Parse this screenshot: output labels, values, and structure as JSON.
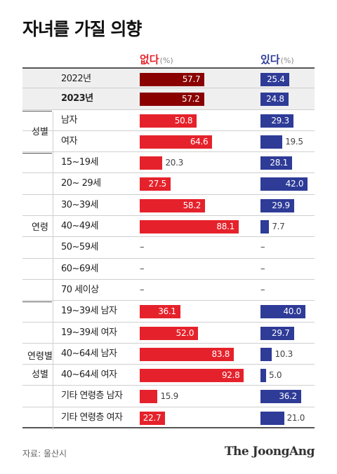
{
  "title": "자녀를 가질 의향",
  "headers": {
    "no": "없다",
    "yes": "있다",
    "unit": "(%)"
  },
  "groups": [
    "성별",
    "연령",
    "연령별",
    "성별"
  ],
  "chart_data": {
    "type": "bar",
    "title": "자녀를 가질 의향",
    "unit": "%",
    "max": 100,
    "colors": {
      "no": "#e5222b",
      "no_total": "#8a0000",
      "yes": "#2e3b97"
    },
    "rows": [
      {
        "label": "2022년",
        "no": 57.7,
        "yes": 25.4,
        "no_text": "57.7",
        "yes_text": "25.4",
        "shaded": true,
        "total": true
      },
      {
        "label": "2023년",
        "no": 57.2,
        "yes": 24.8,
        "no_text": "57.2",
        "yes_text": "24.8",
        "shaded": true,
        "total": true,
        "bold": true
      },
      {
        "label": "남자",
        "no": 50.8,
        "yes": 29.3,
        "no_text": "50.8",
        "yes_text": "29.3"
      },
      {
        "label": "여자",
        "no": 64.6,
        "yes": 19.5,
        "no_text": "64.6",
        "yes_text": "19.5"
      },
      {
        "label": "15~19세",
        "no": 20.3,
        "yes": 28.1,
        "no_text": "20.3",
        "yes_text": "28.1"
      },
      {
        "label": "20~ 29세",
        "no": 27.5,
        "yes": 42.0,
        "no_text": "27.5",
        "yes_text": "42.0"
      },
      {
        "label": "30~39세",
        "no": 58.2,
        "yes": 29.9,
        "no_text": "58.2",
        "yes_text": "29.9"
      },
      {
        "label": "40~49세",
        "no": 88.1,
        "yes": 7.7,
        "no_text": "88.1",
        "yes_text": "7.7"
      },
      {
        "label": "50~59세",
        "no": null,
        "yes": null,
        "no_text": "–",
        "yes_text": "–"
      },
      {
        "label": "60~69세",
        "no": null,
        "yes": null,
        "no_text": "–",
        "yes_text": "–"
      },
      {
        "label": "70 세이상",
        "no": null,
        "yes": null,
        "no_text": "–",
        "yes_text": "–"
      },
      {
        "label": "19~39세 남자",
        "no": 36.1,
        "yes": 40.0,
        "no_text": "36.1",
        "yes_text": "40.0"
      },
      {
        "label": "19~39세 여자",
        "no": 52.0,
        "yes": 29.7,
        "no_text": "52.0",
        "yes_text": "29.7"
      },
      {
        "label": "40~64세 남자",
        "no": 83.8,
        "yes": 10.3,
        "no_text": "83.8",
        "yes_text": "10.3"
      },
      {
        "label": "40~64세 여자",
        "no": 92.8,
        "yes": 5.0,
        "no_text": "92.8",
        "yes_text": "5.0"
      },
      {
        "label": "기타 연령층 남자",
        "no": 15.9,
        "yes": 36.2,
        "no_text": "15.9",
        "yes_text": "36.2"
      },
      {
        "label": "기타 연령층 여자",
        "no": 22.7,
        "yes": 21.0,
        "no_text": "22.7",
        "yes_text": "21.0"
      }
    ]
  },
  "footer": {
    "source": "자료: 울산시",
    "brand": "The JoongAng"
  }
}
